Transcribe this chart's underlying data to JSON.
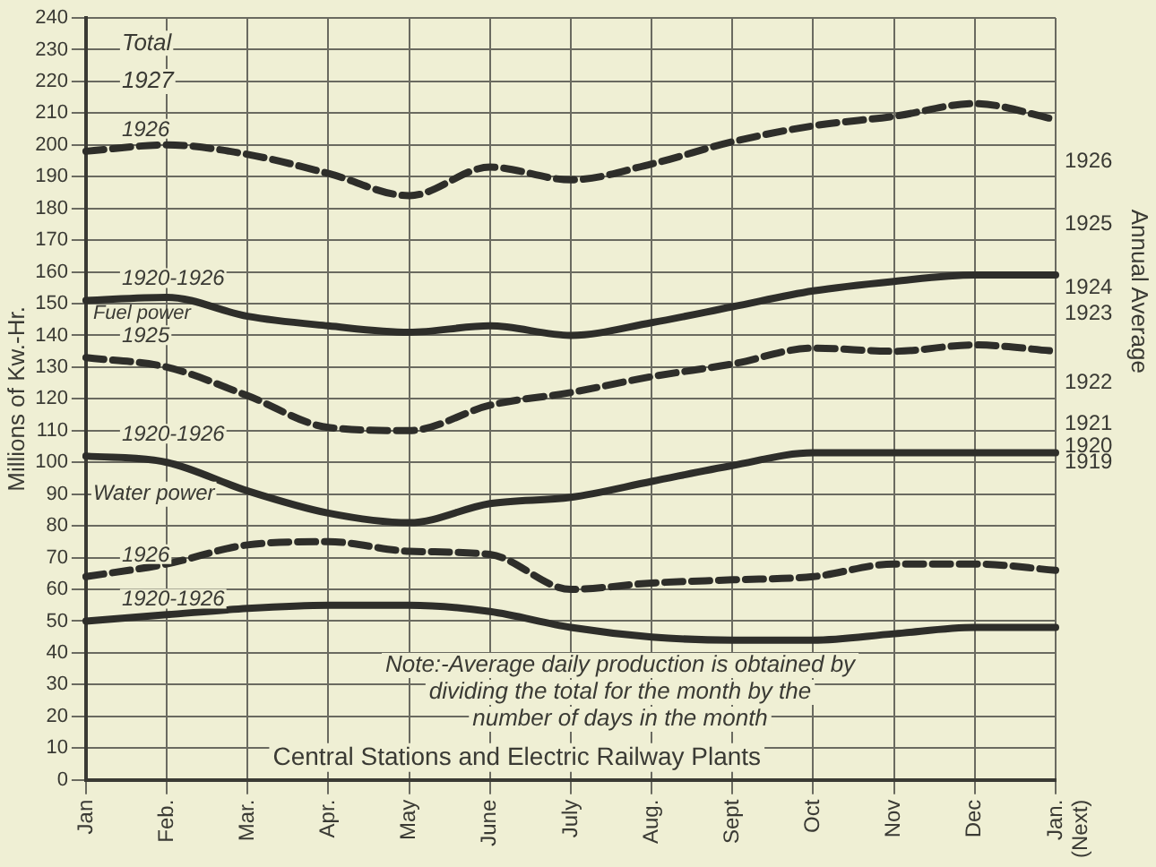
{
  "chart_data": {
    "type": "line",
    "ylabel": "Millions of Kw.-Hr.",
    "y2label": "Annual Average",
    "categories": [
      "Jan",
      "Feb.",
      "Mar.",
      "Apr.",
      "May",
      "June",
      "July",
      "Aug.",
      "Sept",
      "Oct",
      "Nov",
      "Dec",
      "Jan.\n(Next)"
    ],
    "series": [
      {
        "name": "1926",
        "color": "#2e2e2a",
        "line_style": "dashed",
        "values": [
          198,
          200,
          197,
          191,
          184,
          193,
          189,
          194,
          201,
          206,
          209,
          213,
          208
        ]
      },
      {
        "name": "1920-1926",
        "color": "#2e2e2a",
        "line_style": "solid",
        "values": [
          151,
          152,
          146,
          143,
          141,
          143,
          140,
          144,
          149,
          154,
          157,
          159,
          159
        ]
      },
      {
        "name": "1925",
        "color": "#2e2e2a",
        "line_style": "dashed",
        "values": [
          133,
          130,
          121,
          111,
          110,
          118,
          122,
          127,
          131,
          136,
          135,
          137,
          135
        ]
      },
      {
        "name": "1920-1926",
        "color": "#2e2e2a",
        "line_style": "solid",
        "values": [
          102,
          100,
          91,
          84,
          81,
          87,
          89,
          94,
          99,
          103,
          103,
          103,
          103
        ]
      },
      {
        "name": "1926",
        "color": "#2e2e2a",
        "line_style": "dashed",
        "values": [
          64,
          68,
          74,
          75,
          72,
          71,
          60,
          62,
          63,
          64,
          68,
          68,
          66
        ]
      },
      {
        "name": "1920-1926",
        "color": "#2e2e2a",
        "line_style": "solid",
        "values": [
          50,
          52,
          54,
          55,
          55,
          53,
          48,
          45,
          44,
          44,
          46,
          48,
          48
        ]
      }
    ],
    "ylim": [
      0,
      240
    ],
    "yticks": [
      0,
      10,
      20,
      30,
      40,
      50,
      60,
      70,
      80,
      90,
      100,
      110,
      120,
      130,
      140,
      150,
      160,
      170,
      180,
      190,
      200,
      210,
      220,
      230,
      240
    ],
    "grid": true,
    "legend": false,
    "marker": "none",
    "annotations": [
      "Total",
      "1927",
      "Fuel power",
      "Water power",
      "Note:-Average daily production is obtained by dividing the total for the month by the number of days in the month",
      "Central Stations and Electric Railway Plants",
      "1926",
      "1925",
      "1924",
      "1923",
      "1922",
      "1921",
      "1920",
      "1919"
    ]
  }
}
